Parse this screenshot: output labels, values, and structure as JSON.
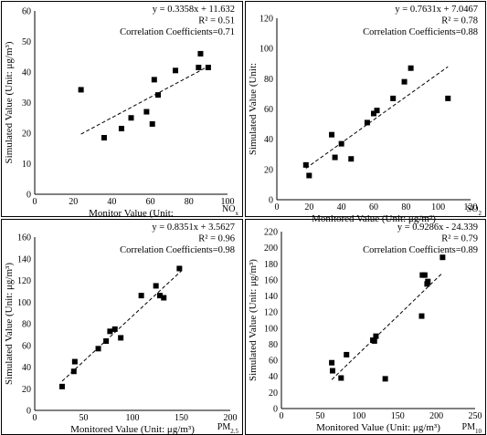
{
  "chart_data": [
    {
      "type": "scatter",
      "panel": "NOx",
      "species_label": "NO",
      "species_sub": "x",
      "xlabel": "Monitor Value (Unit:",
      "ylabel": "Simulated Value (Unit: μg/m³)",
      "xlim": [
        0,
        100
      ],
      "ylim": [
        0,
        60
      ],
      "xticks": [
        0,
        20,
        40,
        60,
        80,
        100
      ],
      "yticks": [
        0,
        10,
        20,
        30,
        40,
        50,
        60
      ],
      "equation": "y = 0.3358x + 11.632",
      "r2": "R² = 0.51",
      "correlation": "Correlation Coefficients=0.71",
      "trend": {
        "slope": 0.3358,
        "intercept": 11.632,
        "x_range": [
          24,
          90
        ]
      },
      "points": [
        {
          "x": 24,
          "y": 34.2
        },
        {
          "x": 36,
          "y": 18.5
        },
        {
          "x": 45,
          "y": 21.5
        },
        {
          "x": 50,
          "y": 25
        },
        {
          "x": 58,
          "y": 27
        },
        {
          "x": 61,
          "y": 23
        },
        {
          "x": 62,
          "y": 37.5
        },
        {
          "x": 64,
          "y": 32.5
        },
        {
          "x": 73,
          "y": 40.5
        },
        {
          "x": 85,
          "y": 41.5
        },
        {
          "x": 86,
          "y": 46
        },
        {
          "x": 90,
          "y": 41.5
        }
      ]
    },
    {
      "type": "scatter",
      "panel": "SO2",
      "species_label": "SO",
      "species_sub": "2",
      "xlabel": "Monitored Value (Unit: μg/m³)",
      "ylabel": "Simulated Value (Unit:",
      "xlim": [
        0,
        120
      ],
      "ylim": [
        0,
        120
      ],
      "xticks": [
        0,
        20,
        40,
        60,
        80,
        100,
        120
      ],
      "yticks": [
        0,
        20,
        40,
        60,
        80,
        100,
        120
      ],
      "equation": "y = 0.7631x + 7.0467",
      "r2": "R² = 0.78",
      "correlation": "Correlation Coefficients=0.88",
      "trend": {
        "slope": 0.7631,
        "intercept": 7.0467,
        "x_range": [
          18,
          106
        ]
      },
      "points": [
        {
          "x": 18,
          "y": 23
        },
        {
          "x": 20,
          "y": 16
        },
        {
          "x": 34,
          "y": 43
        },
        {
          "x": 36,
          "y": 28
        },
        {
          "x": 40,
          "y": 37
        },
        {
          "x": 46,
          "y": 27
        },
        {
          "x": 56,
          "y": 51
        },
        {
          "x": 60,
          "y": 57
        },
        {
          "x": 62,
          "y": 59
        },
        {
          "x": 72,
          "y": 67
        },
        {
          "x": 79,
          "y": 78
        },
        {
          "x": 83,
          "y": 87
        },
        {
          "x": 106,
          "y": 67
        }
      ]
    },
    {
      "type": "scatter",
      "panel": "PM2.5",
      "species_label": "PM",
      "species_sub": "2.5",
      "xlabel": "Monitored Value (Unit: μg/m³)",
      "ylabel": "Simulated Value (Unit: μg/m³)",
      "xlim": [
        0,
        200
      ],
      "ylim": [
        0,
        160
      ],
      "xticks": [
        0,
        50,
        100,
        150,
        200
      ],
      "yticks": [
        0,
        20,
        40,
        60,
        80,
        100,
        120,
        140,
        160
      ],
      "equation": "y = 0.8351x + 3.5627",
      "r2": "R² = 0.96",
      "correlation": "Correlation Coefficients=0.98",
      "trend": {
        "slope": 0.8351,
        "intercept": 3.5627,
        "x_range": [
          28,
          150
        ]
      },
      "points": [
        {
          "x": 28,
          "y": 22
        },
        {
          "x": 40,
          "y": 36
        },
        {
          "x": 41,
          "y": 45
        },
        {
          "x": 65,
          "y": 57
        },
        {
          "x": 73,
          "y": 64
        },
        {
          "x": 77,
          "y": 73
        },
        {
          "x": 82,
          "y": 75
        },
        {
          "x": 88,
          "y": 67
        },
        {
          "x": 109,
          "y": 106
        },
        {
          "x": 124,
          "y": 115
        },
        {
          "x": 128,
          "y": 106
        },
        {
          "x": 132,
          "y": 104
        },
        {
          "x": 148,
          "y": 131
        }
      ]
    },
    {
      "type": "scatter",
      "panel": "PM10",
      "species_label": "PM",
      "species_sub": "10",
      "xlabel": "Monitored Value (Unit: μg/m³)",
      "ylabel": "Simulated Value (Unit: μg/m³)",
      "xlim": [
        0,
        250
      ],
      "ylim": [
        0,
        220
      ],
      "xticks": [
        0,
        50,
        100,
        150,
        200,
        250
      ],
      "yticks": [
        0,
        20,
        40,
        60,
        80,
        100,
        120,
        140,
        160,
        180,
        200,
        220
      ],
      "equation": "y = 0.9286x - 24.339",
      "r2": "R² = 0.79",
      "correlation": "Correlation Coefficients=0.89",
      "trend": {
        "slope": 0.9286,
        "intercept": -24.339,
        "x_range": [
          65,
          208
        ]
      },
      "points": [
        {
          "x": 65,
          "y": 57
        },
        {
          "x": 66,
          "y": 47
        },
        {
          "x": 77,
          "y": 38
        },
        {
          "x": 84,
          "y": 67
        },
        {
          "x": 118,
          "y": 85
        },
        {
          "x": 120,
          "y": 84
        },
        {
          "x": 122,
          "y": 90
        },
        {
          "x": 134,
          "y": 37
        },
        {
          "x": 181,
          "y": 115
        },
        {
          "x": 182,
          "y": 166
        },
        {
          "x": 185,
          "y": 166
        },
        {
          "x": 188,
          "y": 155
        },
        {
          "x": 189,
          "y": 158
        },
        {
          "x": 208,
          "y": 188
        }
      ]
    }
  ]
}
